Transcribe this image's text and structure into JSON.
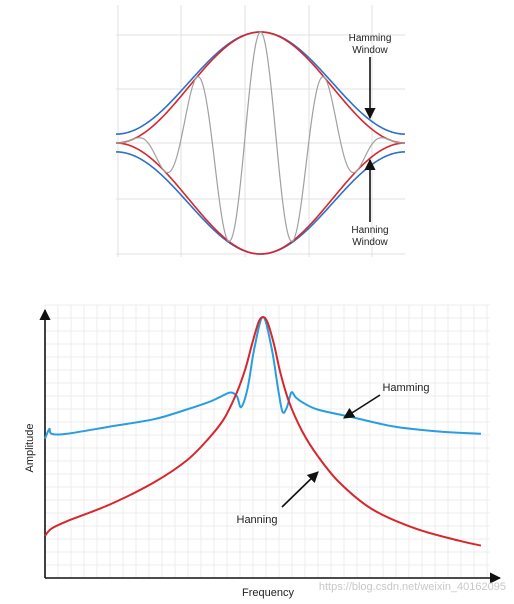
{
  "chart_data": [
    {
      "type": "line",
      "title": "",
      "xlabel": "",
      "ylabel": "",
      "grid": true,
      "annotations": [
        {
          "text_line1": "Hamming",
          "text_line2": "Window"
        },
        {
          "text_line1": "Hanning",
          "text_line2": "Window"
        }
      ],
      "series": [
        {
          "name": "Hamming Window",
          "color": "#2e6fc7",
          "window": "hamming",
          "alpha": 0.54,
          "floor": 0.08,
          "peak": 1.0
        },
        {
          "name": "Hanning Window",
          "color": "#d7262c",
          "window": "hann",
          "alpha": 0.5,
          "floor": 0.0,
          "peak": 1.0
        },
        {
          "name": "",
          "color": "#a0a0a0",
          "kind": "windowed-cosine",
          "cycles": 4.5,
          "peak": 1.0
        }
      ],
      "x_range": [
        -1,
        1
      ],
      "y_range": [
        -1,
        1
      ]
    },
    {
      "type": "line",
      "title": "",
      "xlabel": "Frequency",
      "ylabel": "Amplitude",
      "grid": true,
      "x_range": [
        -1,
        1
      ],
      "y_range": [
        0,
        1
      ],
      "series": [
        {
          "name": "Hamming",
          "color": "#2a9de0",
          "x": [
            -1.0,
            -0.98,
            -0.97,
            -0.9,
            -0.7,
            -0.5,
            -0.35,
            -0.25,
            -0.2,
            -0.15,
            -0.12,
            -0.1,
            -0.07,
            -0.04,
            0.0,
            0.04,
            0.07,
            0.09,
            0.11,
            0.13,
            0.15,
            0.18,
            0.25,
            0.4,
            0.6,
            0.8,
            1.0
          ],
          "y": [
            0.45,
            0.49,
            0.47,
            0.47,
            0.5,
            0.53,
            0.57,
            0.6,
            0.62,
            0.64,
            0.625,
            0.58,
            0.66,
            0.82,
            0.95,
            0.82,
            0.65,
            0.56,
            0.58,
            0.64,
            0.62,
            0.6,
            0.57,
            0.54,
            0.5,
            0.48,
            0.47
          ]
        },
        {
          "name": "Hanning",
          "color": "#d7262c",
          "x": [
            -1.0,
            -0.97,
            -0.9,
            -0.7,
            -0.5,
            -0.35,
            -0.25,
            -0.18,
            -0.12,
            -0.08,
            -0.05,
            -0.02,
            0.0,
            0.02,
            0.05,
            0.08,
            0.12,
            0.18,
            0.25,
            0.35,
            0.5,
            0.7,
            0.9,
            1.0
          ],
          "y": [
            0.05,
            0.08,
            0.11,
            0.18,
            0.27,
            0.36,
            0.45,
            0.53,
            0.64,
            0.74,
            0.84,
            0.93,
            0.95,
            0.93,
            0.84,
            0.72,
            0.6,
            0.48,
            0.38,
            0.27,
            0.16,
            0.08,
            0.03,
            0.01
          ]
        }
      ],
      "annotations": [
        {
          "text": "Hamming"
        },
        {
          "text": "Hanning"
        }
      ]
    }
  ],
  "watermark": "https://blog.csdn.net/weixin_40162095"
}
